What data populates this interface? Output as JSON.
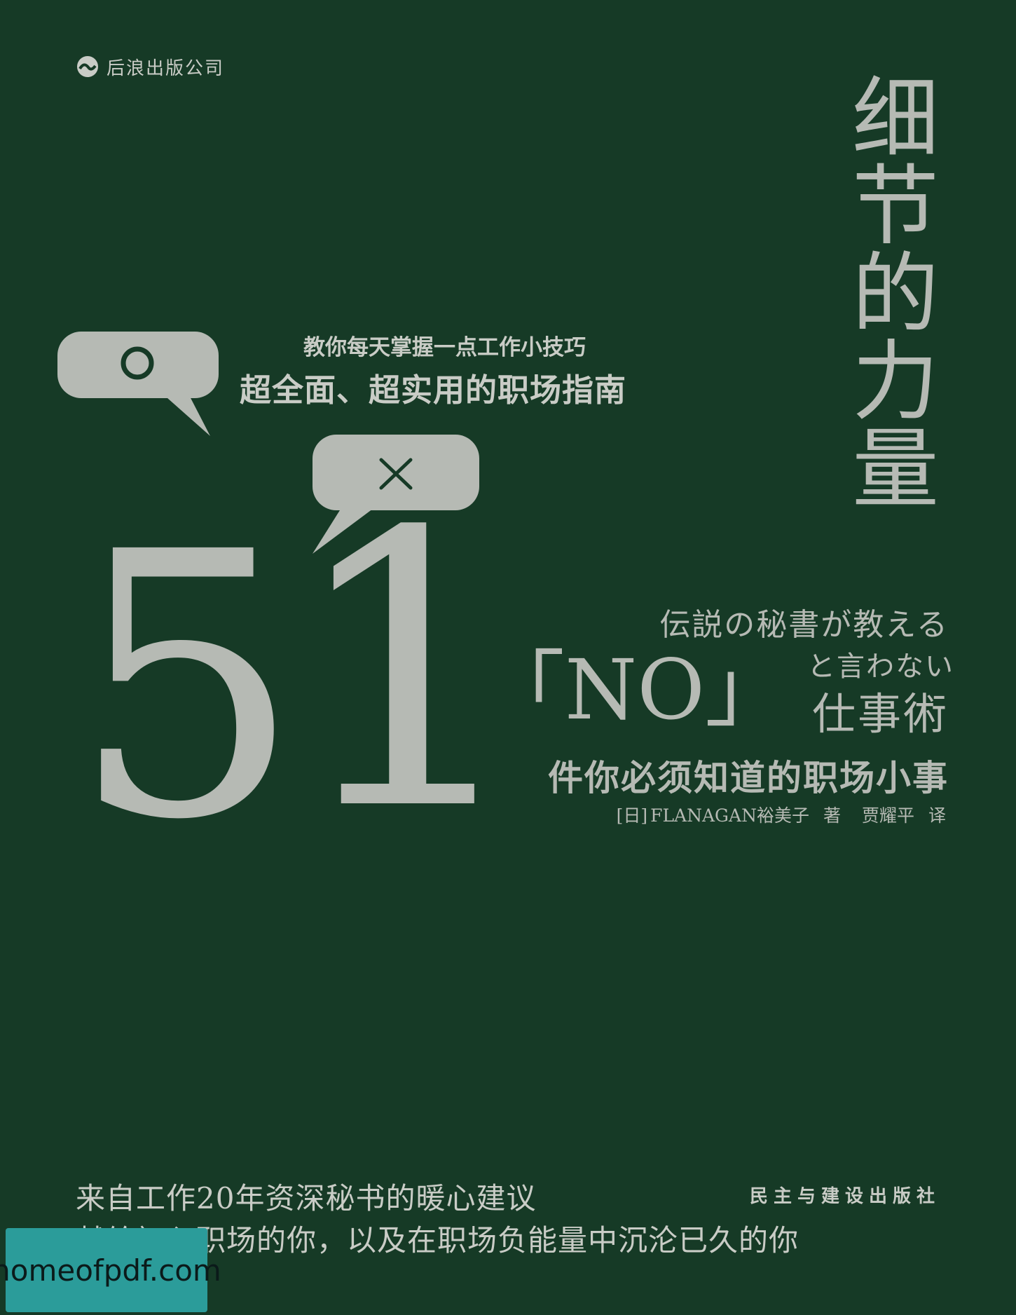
{
  "publisher_top": "后浪出版公司",
  "title": "细节的力量",
  "taglines": {
    "line1": "教你每天掌握一点工作小技巧",
    "line2": "超全面、超实用的职场指南"
  },
  "bubbles": {
    "left_symbol": "○",
    "right_symbol": "×"
  },
  "big_number": {
    "digit1": "5",
    "digit2": "1"
  },
  "japanese_title": {
    "line1": "伝説の秘書が教える",
    "line2": "と言わない",
    "no": "「NO」",
    "line3": "仕事術"
  },
  "subtitle": "件你必须知道的职场小事",
  "credits": {
    "origin": "[日]",
    "author": "FLANAGAN裕美子",
    "author_role": "著",
    "translator": "贾耀平",
    "translator_role": "译"
  },
  "bottom_text": {
    "line1": "来自工作20年资深秘书的暖心建议",
    "line2": "献给初入职场的你，以及在职场负能量中沉沦已久的你"
  },
  "publisher_bottom": "民主与建设出版社",
  "watermark": "homeofpdf.com",
  "colors": {
    "background": "#163a26",
    "foreground": "#b6bab4",
    "watermark_bg": "#2b9c9a"
  }
}
